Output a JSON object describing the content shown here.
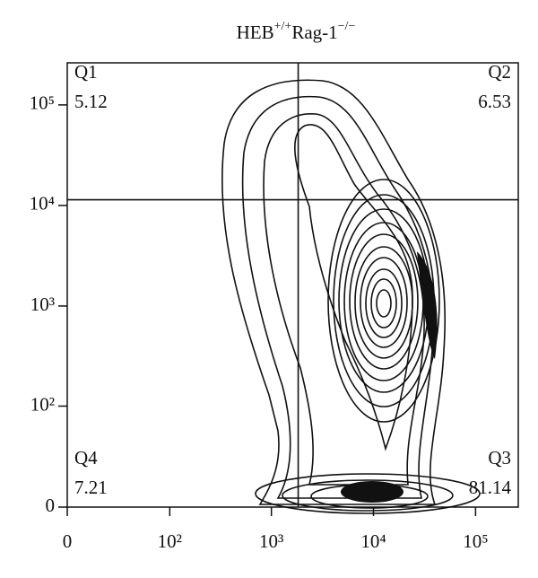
{
  "chart_data": {
    "type": "contour",
    "title": [
      "HEB",
      "+/+",
      "Rag-1",
      "−/−"
    ],
    "xlim": [
      0,
      262144
    ],
    "ylim": [
      0,
      262144
    ],
    "xticks": [
      0,
      {
        "value": 100,
        "label": "10²"
      },
      {
        "value": 1000,
        "label": "10³"
      },
      {
        "value": 10000,
        "label": "10⁴"
      },
      {
        "value": 100000,
        "label": "10⁵"
      }
    ],
    "yticks": [
      0,
      {
        "value": 100,
        "label": "10²"
      },
      {
        "value": 1000,
        "label": "10³"
      },
      {
        "value": 10000,
        "label": "10⁴"
      },
      {
        "value": 100000,
        "label": "10⁵"
      }
    ],
    "gate": {
      "x": 1830,
      "y": 11400
    },
    "quadrants": [
      {
        "name": "Q1",
        "value": 5.12
      },
      {
        "name": "Q2",
        "value": 6.53
      },
      {
        "name": "Q3",
        "value": 81.14
      },
      {
        "name": "Q4",
        "value": 7.21
      }
    ]
  }
}
